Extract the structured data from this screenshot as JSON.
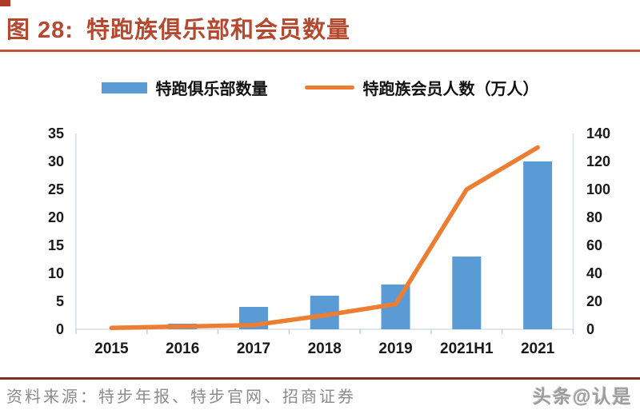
{
  "page": {
    "title_label": "图 28:",
    "title_text": "特跑族俱乐部和会员数量",
    "source_text": "资料来源：特步年报、特步官网、招商证券",
    "watermark": "头条@认是"
  },
  "colors": {
    "title_red": "#B5492F",
    "title_underline": "#C2553B",
    "source_rule": "#7E3024",
    "bar_blue": "#5B9BD5",
    "line_orange": "#ED7D31",
    "axis_frame_gray": "#D8DEE8",
    "tick_gray": "#C8D0DC",
    "axis_label_black": "#1A1A1A",
    "source_gray": "#8B8B8B"
  },
  "legend": {
    "items": [
      {
        "swatch": "bar",
        "label": "特跑俱乐部数量",
        "color": "#5B9BD5"
      },
      {
        "swatch": "line",
        "label": "特跑族会员人数（万人）",
        "color": "#ED7D31"
      }
    ]
  },
  "chart_data": {
    "type": "bar",
    "subtype": "combo-bar-line-dual-axis",
    "title": "特跑族俱乐部和会员数量",
    "categories": [
      "2015",
      "2016",
      "2017",
      "2018",
      "2019",
      "2021H1",
      "2021"
    ],
    "series": [
      {
        "name": "特跑俱乐部数量",
        "type": "bar",
        "axis": "left",
        "color": "#5B9BD5",
        "values": [
          0,
          1,
          4,
          6,
          8,
          13,
          30
        ]
      },
      {
        "name": "特跑族会员人数（万人）",
        "type": "line",
        "axis": "right",
        "color": "#ED7D31",
        "values": [
          1,
          2,
          3,
          10,
          18,
          100,
          130
        ]
      }
    ],
    "left_axis": {
      "min": 0,
      "max": 35,
      "step": 5,
      "ticks": [
        0,
        5,
        10,
        15,
        20,
        25,
        30,
        35
      ]
    },
    "right_axis": {
      "min": 0,
      "max": 140,
      "step": 20,
      "ticks": [
        0,
        20,
        40,
        60,
        80,
        100,
        120,
        140
      ]
    },
    "grid": false,
    "legend_position": "top",
    "xlabel": "",
    "ylabel_left": "",
    "ylabel_right": "万人"
  }
}
